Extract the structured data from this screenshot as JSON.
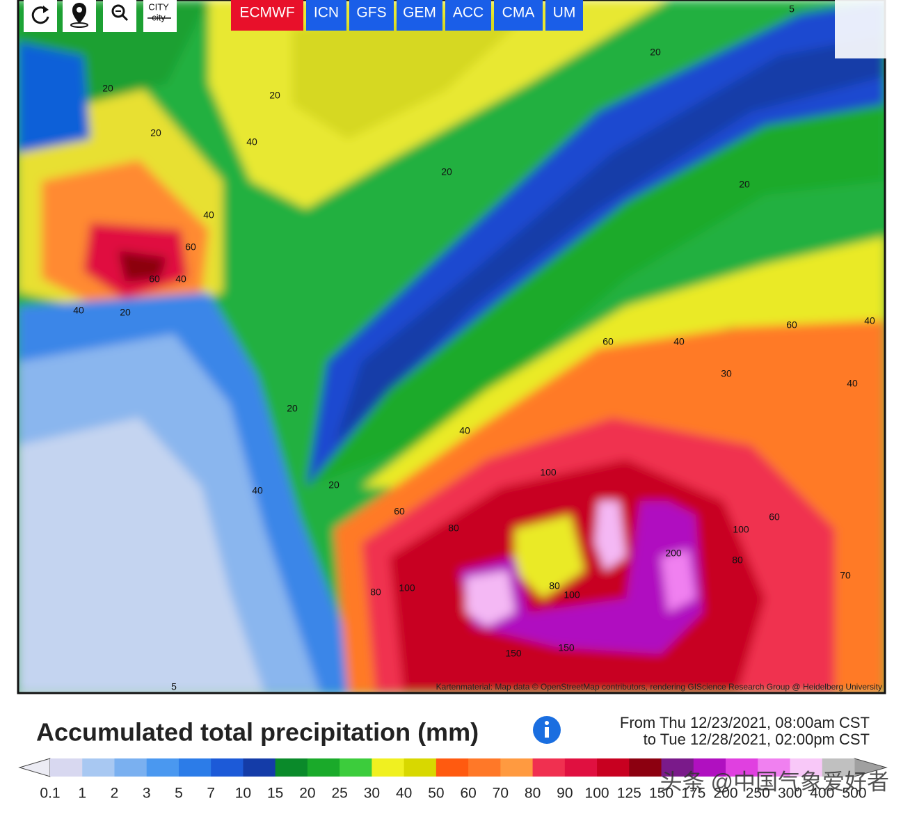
{
  "toolbar": {
    "city_button": {
      "line1": "CITY",
      "line2": "city"
    }
  },
  "model_tabs": [
    "ECMWF",
    "ICN",
    "GFS",
    "GEM",
    "ACC",
    "CMA",
    "UM"
  ],
  "active_tab": "ECMWF",
  "map": {
    "attribution": "Kartenmaterial: Map data © OpenStreetMap contributors, rendering GIScience Research Group @ Heidelberg University",
    "contour_labels": [
      5,
      20,
      20,
      20,
      20,
      40,
      20,
      20,
      40,
      60,
      60,
      40,
      40,
      20,
      60,
      40,
      60,
      40,
      30,
      40,
      20,
      40,
      20,
      40,
      100,
      60,
      60,
      80,
      80,
      100,
      100,
      80,
      100,
      80,
      200,
      70,
      150,
      150,
      5
    ]
  },
  "legend": {
    "title": "Accumulated total precipitation (mm)",
    "period_from": "From Thu 12/23/2021, 08:00am CST",
    "period_to": "to Tue 12/28/2021, 02:00pm CST",
    "stops": [
      0.1,
      1,
      2,
      3,
      5,
      7,
      10,
      15,
      20,
      25,
      30,
      40,
      50,
      60,
      70,
      80,
      90,
      100,
      125,
      150,
      175,
      200,
      250,
      300,
      400,
      500
    ],
    "colors": [
      "#d8d8f0",
      "#a8c8f2",
      "#7ab0f0",
      "#4a98f0",
      "#2c7ce8",
      "#1c5ad8",
      "#143ca8",
      "#0a8a2a",
      "#1aaa2a",
      "#3ccc3c",
      "#f0f020",
      "#d8d800",
      "#ff5a10",
      "#ff7828",
      "#ff9a40",
      "#f03050",
      "#e01040",
      "#c80020",
      "#8c0010",
      "#7a1a8a",
      "#b010c0",
      "#e040e0",
      "#f080f0",
      "#f8c8f8",
      "#c0c0c0"
    ]
  },
  "watermark": "头条 @中国气象爱好者"
}
